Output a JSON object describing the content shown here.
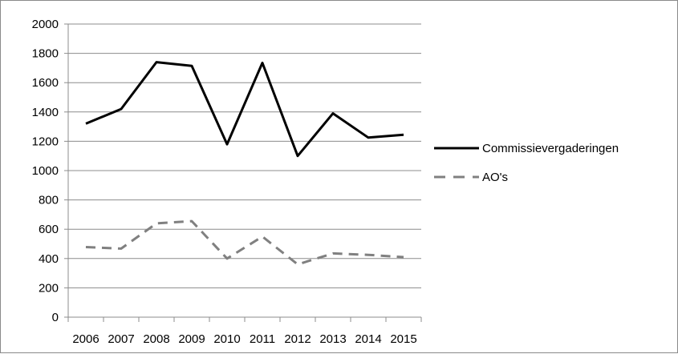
{
  "chart_data": {
    "type": "line",
    "categories": [
      "2006",
      "2007",
      "2008",
      "2009",
      "2010",
      "2011",
      "2012",
      "2013",
      "2014",
      "2015"
    ],
    "ylim": [
      0,
      2000
    ],
    "yticks": [
      0,
      200,
      400,
      600,
      800,
      1000,
      1200,
      1400,
      1600,
      1800,
      2000
    ],
    "grid": "horizontal",
    "legend": "right",
    "series": [
      {
        "name": "Commissievergaderingen",
        "values": [
          1320,
          1420,
          1740,
          1715,
          1180,
          1735,
          1100,
          1390,
          1225,
          1245
        ],
        "color": "#000000",
        "style": "solid"
      },
      {
        "name": "AO's",
        "values": [
          478,
          468,
          640,
          655,
          400,
          550,
          360,
          435,
          425,
          410
        ],
        "color": "#808080",
        "style": "dashed"
      }
    ]
  }
}
